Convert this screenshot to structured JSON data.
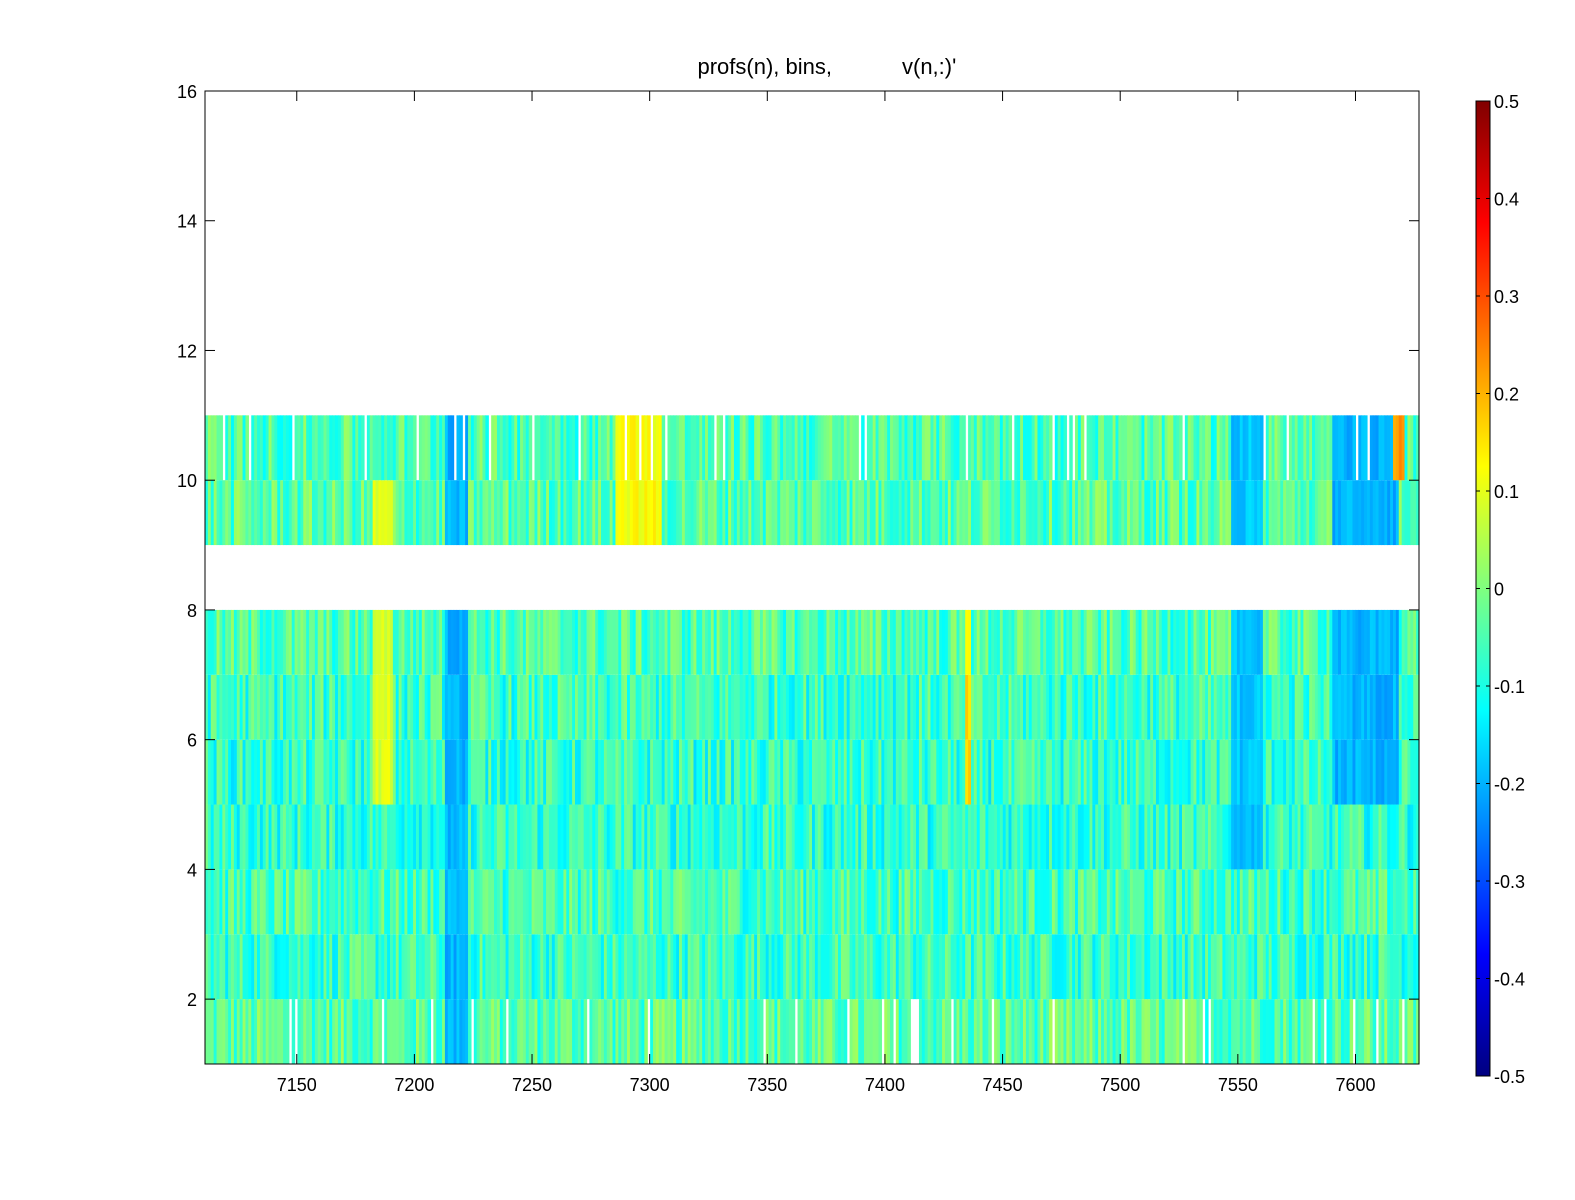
{
  "chart_data": {
    "type": "heatmap",
    "title_left": "profs(n), bins,",
    "title_right": "v(n,:)'",
    "xlabel": "",
    "ylabel": "",
    "xlim": [
      7111,
      7627
    ],
    "ylim": [
      1,
      16
    ],
    "xticks": [
      7150,
      7200,
      7250,
      7300,
      7350,
      7400,
      7450,
      7500,
      7550,
      7600
    ],
    "yticks": [
      2,
      4,
      6,
      8,
      10,
      12,
      14,
      16
    ],
    "colormap": "jet",
    "clim": [
      -0.5,
      0.5
    ],
    "colorbar": {
      "ticks": [
        0.5,
        0.4,
        0.3,
        0.2,
        0.1,
        0,
        -0.1,
        -0.2,
        -0.3,
        -0.4,
        -0.5
      ],
      "tick_labels": [
        "0.5",
        "0.4",
        "0.3",
        "0.2",
        "0.1",
        "0",
        "-0.1",
        "-0.2",
        "-0.3",
        "-0.4",
        "-0.5"
      ],
      "location": "right"
    },
    "bins": [
      1,
      2,
      3,
      4,
      5,
      6,
      7,
      8,
      9,
      10,
      11,
      12,
      13,
      14,
      15,
      16
    ],
    "empty_bins": [
      8,
      11,
      12,
      13,
      14,
      15,
      16
    ],
    "bin_mean_values": {
      "1": -0.04,
      "2": -0.07,
      "3": -0.06,
      "4": -0.08,
      "5": -0.08,
      "6": -0.07,
      "7": -0.05,
      "9": -0.04,
      "10": -0.05
    },
    "features": [
      {
        "x": [
          7212,
          7222
        ],
        "bins": [
          1,
          10
        ],
        "value": -0.2
      },
      {
        "x": [
          7285,
          7305
        ],
        "bins": [
          9,
          10
        ],
        "value": 0.12
      },
      {
        "x": [
          7547,
          7560
        ],
        "bins": [
          4,
          10
        ],
        "value": -0.18
      },
      {
        "x": [
          7590,
          7618
        ],
        "bins": [
          5,
          10
        ],
        "value": -0.2
      },
      {
        "x": [
          7433,
          7436
        ],
        "bins": [
          5,
          7
        ],
        "value": 0.15
      },
      {
        "x": [
          7182,
          7190
        ],
        "bins": [
          5,
          9
        ],
        "value": 0.09
      },
      {
        "x": [
          7615,
          7620
        ],
        "bins": [
          10,
          10
        ],
        "value": 0.22
      }
    ]
  }
}
